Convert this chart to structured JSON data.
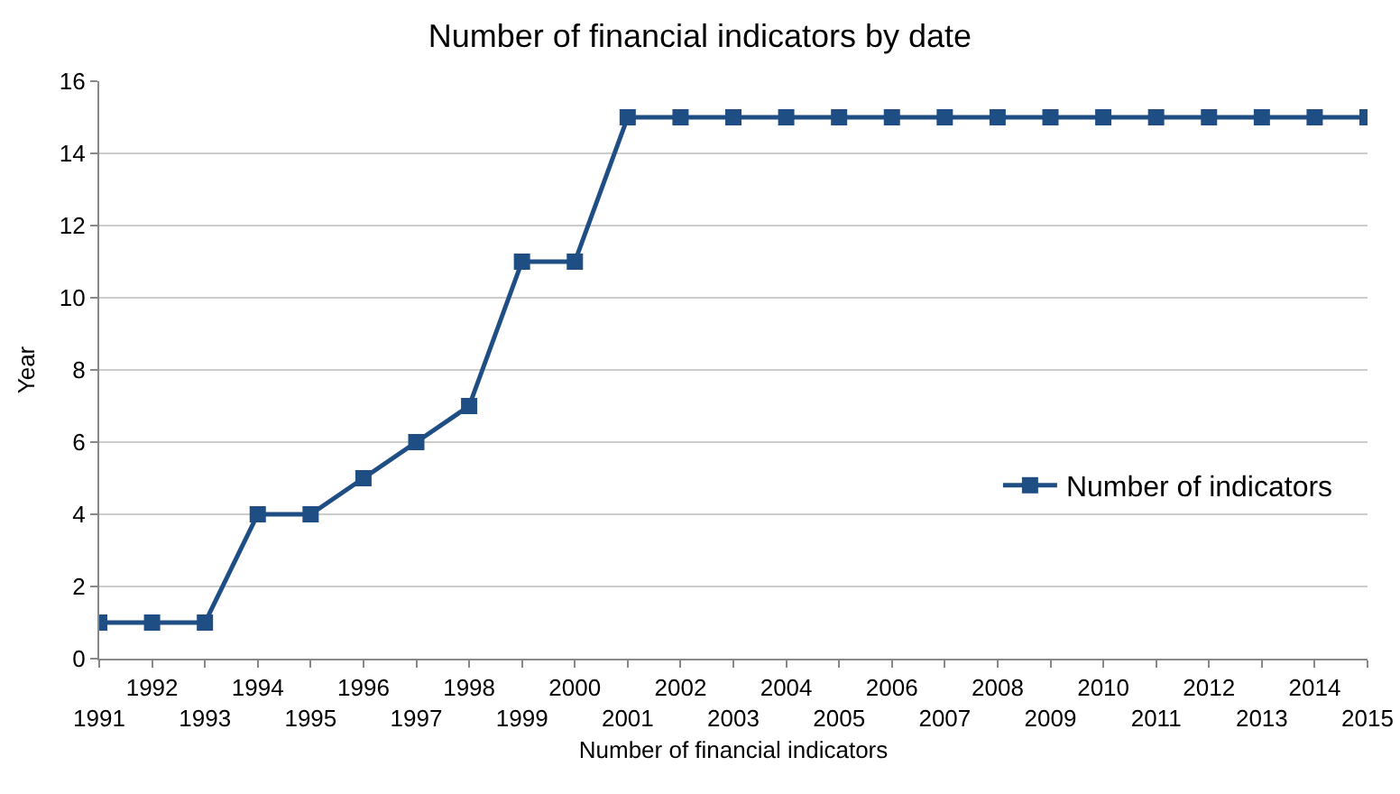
{
  "chart_data": {
    "type": "line",
    "title": "Number of financial indicators by date",
    "xlabel": "Number of financial indicators",
    "ylabel": "Year",
    "categories": [
      "1991",
      "1992",
      "1993",
      "1994",
      "1995",
      "1996",
      "1997",
      "1998",
      "1999",
      "2000",
      "2001",
      "2002",
      "2003",
      "2004",
      "2005",
      "2006",
      "2007",
      "2008",
      "2009",
      "2010",
      "2011",
      "2012",
      "2013",
      "2014",
      "2015"
    ],
    "series": [
      {
        "name": "Number of indicators",
        "color": "#1f4e85",
        "values": [
          1,
          1,
          1,
          4,
          4,
          5,
          6,
          7,
          11,
          11,
          15,
          15,
          15,
          15,
          15,
          15,
          15,
          15,
          15,
          15,
          15,
          15,
          15,
          15,
          15
        ]
      }
    ],
    "ylim": [
      0,
      16
    ],
    "yticks": [
      0,
      2,
      4,
      6,
      8,
      10,
      12,
      14,
      16
    ],
    "grid": "y",
    "legend": "right",
    "marker": "square",
    "line_style": "solid"
  }
}
